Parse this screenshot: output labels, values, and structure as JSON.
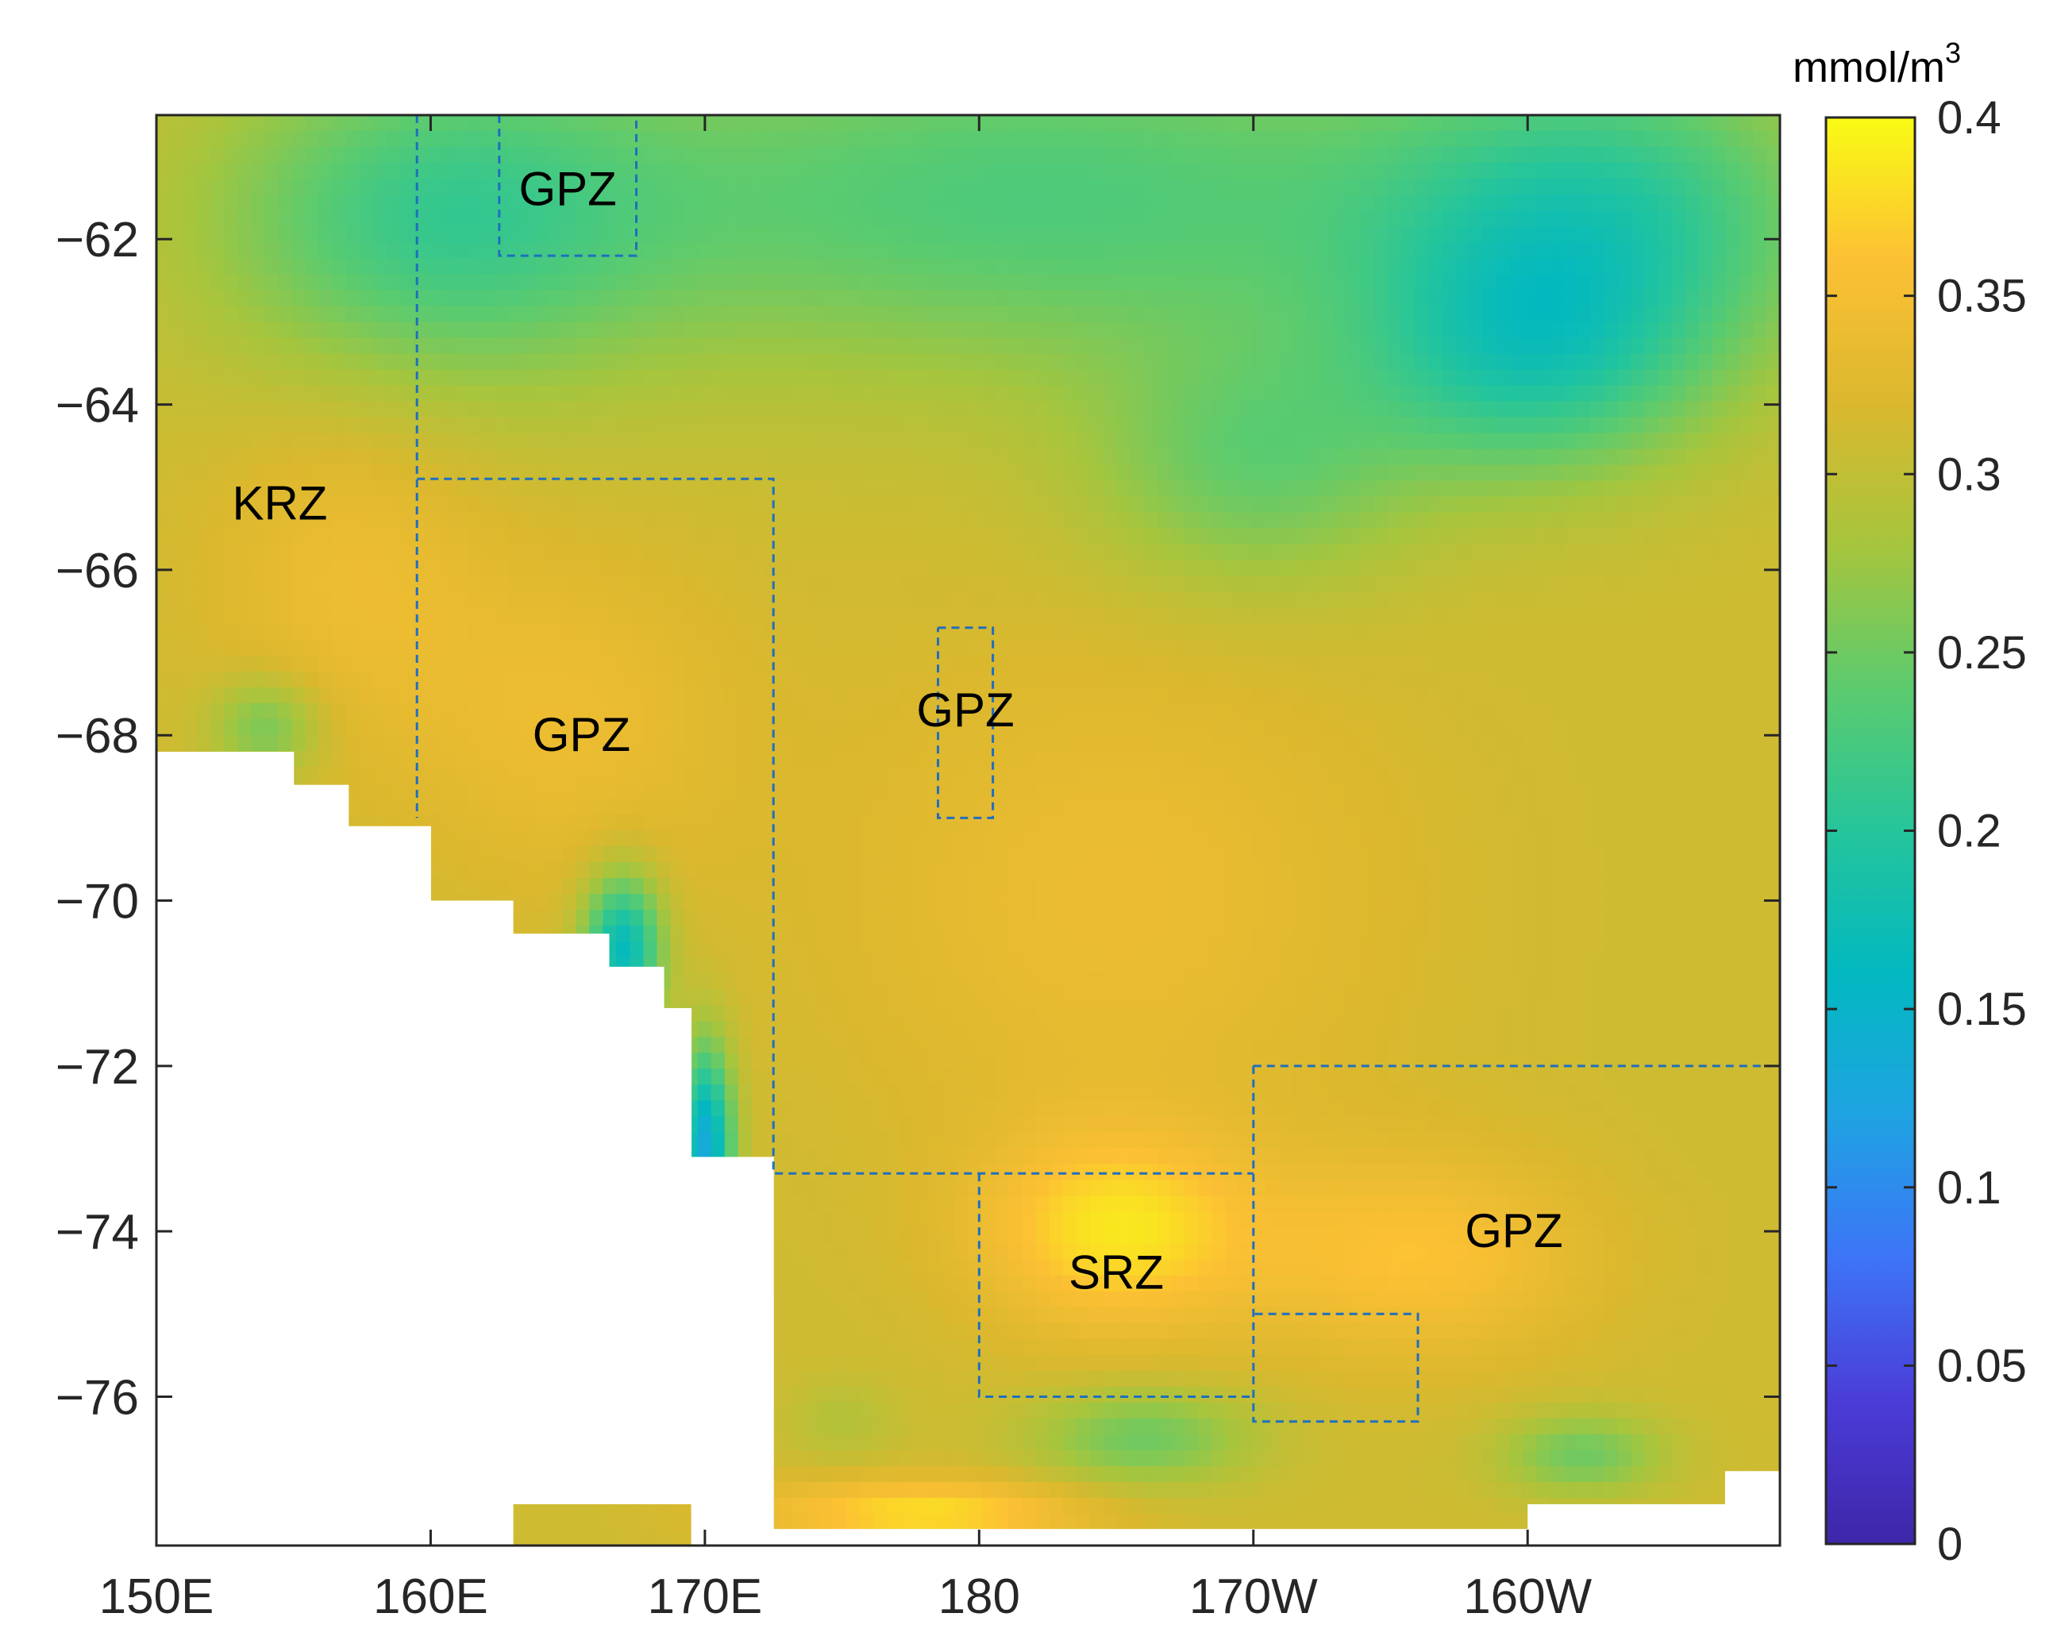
{
  "chart_data": {
    "type": "heatmap",
    "title": "",
    "xlabel": "",
    "ylabel": "",
    "x_ticks": [
      {
        "lon": 150,
        "label": "150E"
      },
      {
        "lon": 160,
        "label": "160E"
      },
      {
        "lon": 170,
        "label": "170E"
      },
      {
        "lon": 180,
        "label": "180"
      },
      {
        "lon": 190,
        "label": "170W"
      },
      {
        "lon": 200,
        "label": "160W"
      }
    ],
    "y_ticks": [
      {
        "lat": -62,
        "label": "−62"
      },
      {
        "lat": -64,
        "label": "−64"
      },
      {
        "lat": -66,
        "label": "−66"
      },
      {
        "lat": -68,
        "label": "−68"
      },
      {
        "lat": -70,
        "label": "−70"
      },
      {
        "lat": -72,
        "label": "−72"
      },
      {
        "lat": -74,
        "label": "−74"
      },
      {
        "lat": -76,
        "label": "−76"
      }
    ],
    "xlim": [
      150,
      209.2
    ],
    "ylim": [
      -77.8,
      -60.5
    ],
    "colorbar": {
      "unit_main": "mmol/m",
      "unit_sup": "3",
      "range": [
        0,
        0.4
      ],
      "ticks": [
        {
          "value": 0,
          "label": "0"
        },
        {
          "value": 0.05,
          "label": "0.05"
        },
        {
          "value": 0.1,
          "label": "0.1"
        },
        {
          "value": 0.15,
          "label": "0.15"
        },
        {
          "value": 0.2,
          "label": "0.2"
        },
        {
          "value": 0.25,
          "label": "0.25"
        },
        {
          "value": 0.3,
          "label": "0.3"
        },
        {
          "value": 0.35,
          "label": "0.35"
        },
        {
          "value": 0.4,
          "label": "0.4"
        }
      ],
      "colors": [
        "#3e26a8",
        "#4b3cd8",
        "#3d74f7",
        "#1fa3e2",
        "#02b8c0",
        "#25c59b",
        "#5ccb6e",
        "#a6c53d",
        "#dbb82e",
        "#fcc034",
        "#f9fb14"
      ]
    },
    "zone_labels": [
      {
        "text": "GPZ",
        "lon": 165.0,
        "lat": -61.4
      },
      {
        "text": "KRZ",
        "lon": 154.5,
        "lat": -65.2
      },
      {
        "text": "GPZ",
        "lon": 165.5,
        "lat": -68.0
      },
      {
        "text": "GPZ",
        "lon": 179.5,
        "lat": -67.7
      },
      {
        "text": "SRZ",
        "lon": 185.0,
        "lat": -74.5
      },
      {
        "text": "GPZ",
        "lon": 199.5,
        "lat": -74.0
      }
    ],
    "zone_boundaries": [
      [
        [
          162.5,
          -60.5
        ],
        [
          162.5,
          -62.2
        ],
        [
          167.5,
          -62.2
        ],
        [
          167.5,
          -60.5
        ]
      ],
      [
        [
          159.5,
          -60.5
        ],
        [
          159.5,
          -69.0
        ]
      ],
      [
        [
          159.5,
          -64.9
        ],
        [
          172.5,
          -64.9
        ],
        [
          172.5,
          -73.3
        ],
        [
          190.0,
          -73.3
        ]
      ],
      [
        [
          178.5,
          -66.7
        ],
        [
          180.5,
          -66.7
        ],
        [
          180.5,
          -69.0
        ],
        [
          178.5,
          -69.0
        ],
        [
          178.5,
          -66.7
        ]
      ],
      [
        [
          180.0,
          -73.3
        ],
        [
          180.0,
          -76.0
        ],
        [
          190.0,
          -76.0
        ]
      ],
      [
        [
          190.0,
          -72.0
        ],
        [
          209.2,
          -72.0
        ]
      ],
      [
        [
          190.0,
          -72.0
        ],
        [
          190.0,
          -76.3
        ],
        [
          196.0,
          -76.3
        ],
        [
          196.0,
          -75.0
        ],
        [
          190.0,
          -75.0
        ]
      ]
    ],
    "field": {
      "background_value": 0.31,
      "features": [
        {
          "lon": 182,
          "lat": -61.5,
          "value": 0.23,
          "slon": 20,
          "slat": 2.2
        },
        {
          "lon": 160,
          "lat": -61.8,
          "value": 0.235,
          "slon": 8,
          "slat": 2.0
        },
        {
          "lon": 203,
          "lat": -61.8,
          "value": 0.225,
          "slon": 8,
          "slat": 2.0
        },
        {
          "lon": 200,
          "lat": -63.5,
          "value": 0.23,
          "slon": 6,
          "slat": 1.5
        },
        {
          "lon": 190,
          "lat": -64.8,
          "value": 0.25,
          "slon": 6,
          "slat": 1.5
        },
        {
          "lon": 157,
          "lat": -66.0,
          "value": 0.34,
          "slon": 5,
          "slat": 2.0
        },
        {
          "lon": 165,
          "lat": -67.8,
          "value": 0.34,
          "slon": 6,
          "slat": 2.0
        },
        {
          "lon": 185,
          "lat": -70.0,
          "value": 0.34,
          "slon": 10,
          "slat": 3.0
        },
        {
          "lon": 185,
          "lat": -74.0,
          "value": 0.38,
          "slon": 5,
          "slat": 1.2
        },
        {
          "lon": 196,
          "lat": -74.3,
          "value": 0.36,
          "slon": 6,
          "slat": 1.2
        },
        {
          "lon": 170,
          "lat": -73.0,
          "value": 0.13,
          "slon": 1.0,
          "slat": 1.2
        },
        {
          "lon": 167,
          "lat": -70.6,
          "value": 0.16,
          "slon": 1.4,
          "slat": 0.9
        },
        {
          "lon": 168.2,
          "lat": -74.0,
          "value": 0.17,
          "slon": 1.0,
          "slat": 0.6
        },
        {
          "lon": 166,
          "lat": -75.0,
          "value": 0.24,
          "slon": 1.3,
          "slat": 1.0
        },
        {
          "lon": 154,
          "lat": -67.9,
          "value": 0.25,
          "slon": 2.0,
          "slat": 0.6
        },
        {
          "lon": 186,
          "lat": -76.5,
          "value": 0.25,
          "slon": 4.0,
          "slat": 0.6
        },
        {
          "lon": 175,
          "lat": -76.3,
          "value": 0.29,
          "slon": 2.0,
          "slat": 0.5
        },
        {
          "lon": 202,
          "lat": -76.7,
          "value": 0.25,
          "slon": 3.0,
          "slat": 0.5
        },
        {
          "lon": 178,
          "lat": -77.4,
          "value": 0.38,
          "slon": 6.0,
          "slat": 0.4
        }
      ]
    },
    "land_mask_lat": [
      [
        -77.8,
        -68.2
      ],
      [
        -77.8,
        -68.6
      ],
      [
        -77.8,
        -69.1
      ],
      [
        -77.8,
        -70.0
      ],
      [
        -77.3,
        -70.4
      ],
      [
        -77.3,
        -70.8
      ],
      [
        -77.3,
        -71.3
      ],
      [
        -77.8,
        -73.1
      ],
      [
        -77.8,
        -77.6
      ],
      [
        -77.8,
        -77.3
      ],
      [
        -77.8,
        -76.9
      ],
      [
        -77.8,
        -77.8
      ]
    ],
    "land_mask_lon_edges": [
      150,
      155,
      157,
      160,
      163,
      166.5,
      168.5,
      169.5,
      172.5,
      200,
      207.2,
      209.2
    ]
  }
}
